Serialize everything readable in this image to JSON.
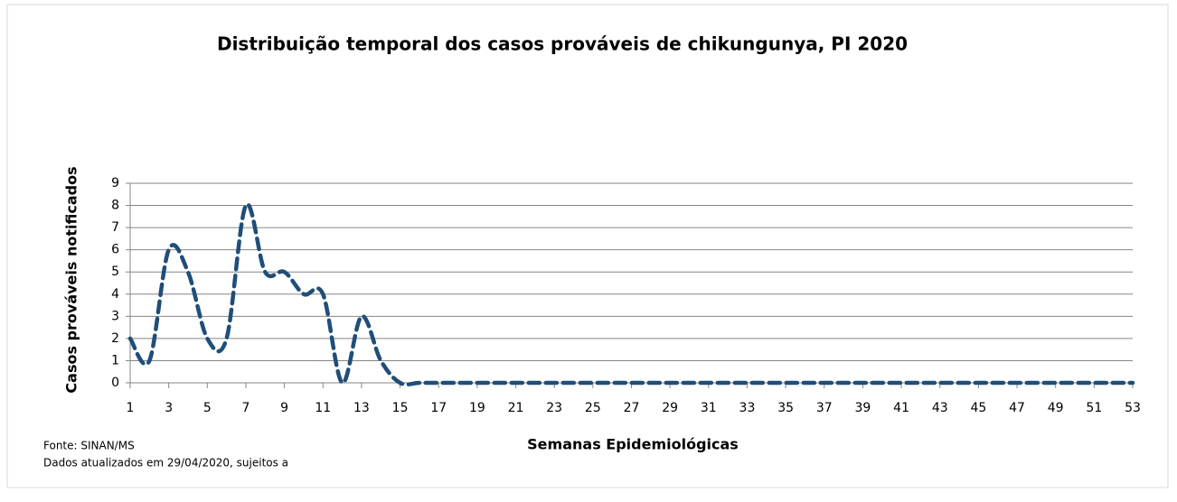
{
  "chart_data": {
    "type": "line",
    "title": "Distribuição temporal dos casos prováveis de chikungunya,  PI 2020",
    "x_label": "Semanas Epidemiológicas",
    "y_label": "Casos prováveis notificados",
    "notes": [
      "Fonte: SINAN/MS",
      "Dados atualizados em 29/04/2020, sujeitos a"
    ],
    "x": [
      1,
      2,
      3,
      4,
      5,
      6,
      7,
      8,
      9,
      10,
      11,
      12,
      13,
      14,
      15,
      16,
      17,
      18,
      19,
      20,
      21,
      22,
      23,
      24,
      25,
      26,
      27,
      28,
      29,
      30,
      31,
      32,
      33,
      34,
      35,
      36,
      37,
      38,
      39,
      40,
      41,
      42,
      43,
      44,
      45,
      46,
      47,
      48,
      49,
      50,
      51,
      52,
      53
    ],
    "series": [
      {
        "color": "#1f4e79",
        "values": [
          2,
          1,
          6,
          5,
          2,
          2,
          8,
          5,
          5,
          4,
          4,
          0,
          3,
          1,
          0,
          0,
          0,
          0,
          0,
          0,
          0,
          0,
          0,
          0,
          0,
          0,
          0,
          0,
          0,
          0,
          0,
          0,
          0,
          0,
          0,
          0,
          0,
          0,
          0,
          0,
          0,
          0,
          0,
          0,
          0,
          0,
          0,
          0,
          0,
          0,
          0,
          0,
          0
        ]
      }
    ],
    "xlim": [
      1,
      53
    ],
    "xticks": [
      1,
      3,
      5,
      7,
      9,
      11,
      13,
      15,
      17,
      19,
      21,
      23,
      25,
      27,
      29,
      31,
      33,
      35,
      37,
      39,
      41,
      43,
      45,
      47,
      49,
      51,
      53
    ],
    "ylim": [
      0,
      9
    ],
    "yticks": [
      0,
      1,
      2,
      3,
      4,
      5,
      6,
      7,
      8,
      9
    ],
    "grid": true
  }
}
